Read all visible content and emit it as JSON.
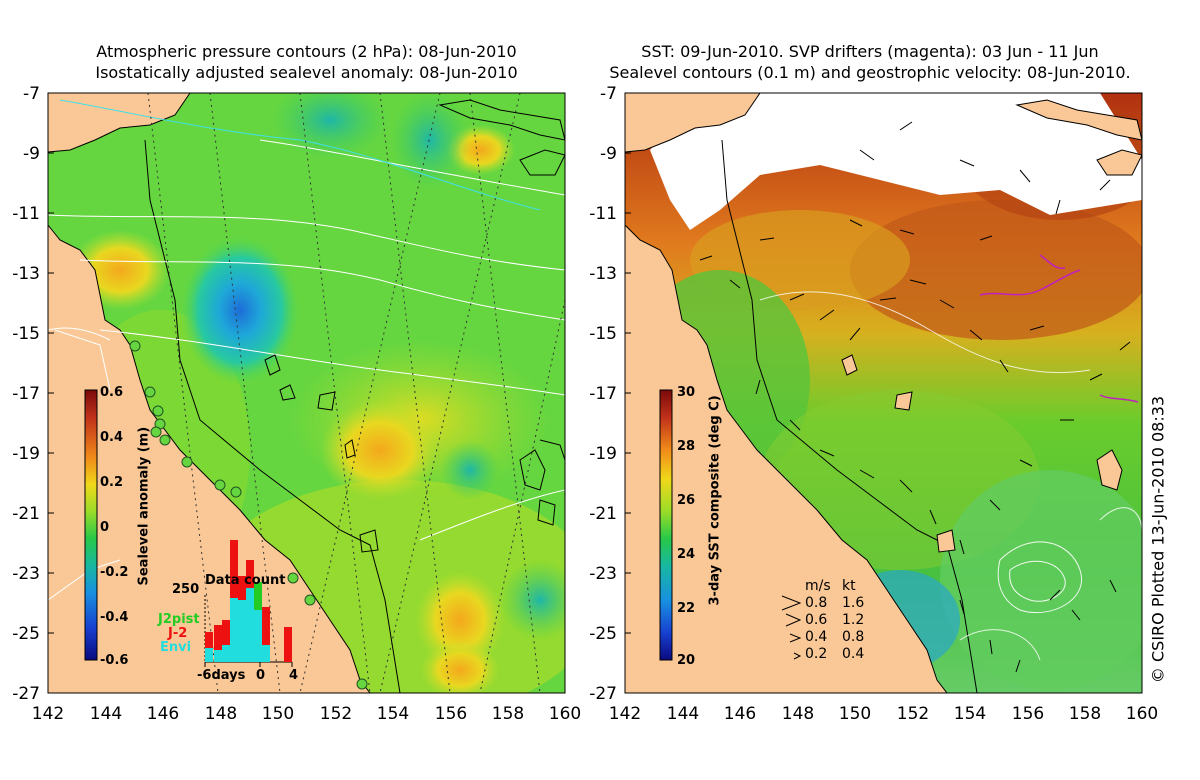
{
  "left_panel": {
    "title_line1": "Atmospheric pressure contours (2 hPa): 08-Jun-2010",
    "title_line2": "Isostatically adjusted sealevel anomaly: 08-Jun-2010",
    "y_ticks": [
      "-7",
      "-9",
      "-11",
      "-13",
      "-15",
      "-17",
      "-19",
      "-21",
      "-23",
      "-25",
      "-27"
    ],
    "x_ticks": [
      "142",
      "144",
      "146",
      "148",
      "150",
      "152",
      "154",
      "156",
      "158",
      "160"
    ],
    "colorbar": {
      "label": "Sealevel anomaly (m)",
      "ticks": [
        "0.6",
        "0.4",
        "0.2",
        "0",
        "-0.2",
        "-0.4",
        "-0.6"
      ],
      "range": [
        -0.6,
        0.6
      ]
    },
    "histogram": {
      "title": "Data count",
      "y_tick": "250",
      "x_ticks": [
        "-6days",
        "0",
        "4"
      ],
      "legend": [
        "J2pist",
        "J-2",
        "Envi"
      ],
      "colors": {
        "J2pist": "#22cc22",
        "J-2": "#ee1111",
        "Envi": "#22dddd"
      }
    }
  },
  "right_panel": {
    "title_line1": "SST: 09-Jun-2010. SVP drifters (magenta): 03 Jun - 11 Jun",
    "title_line2": "Sealevel contours (0.1 m) and geostrophic velocity: 08-Jun-2010.",
    "y_ticks": [
      "-7",
      "-9",
      "-11",
      "-13",
      "-15",
      "-17",
      "-19",
      "-21",
      "-23",
      "-25",
      "-27"
    ],
    "x_ticks": [
      "142",
      "144",
      "146",
      "148",
      "150",
      "152",
      "154",
      "156",
      "158",
      "160"
    ],
    "colorbar": {
      "label": "3-day SST composite (deg C)",
      "ticks": [
        "30",
        "28",
        "26",
        "24",
        "22",
        "20"
      ],
      "range": [
        20,
        30
      ]
    },
    "velocity_legend": {
      "header_ms": "m/s",
      "header_kt": "kt",
      "rows": [
        {
          "ms": "0.8",
          "kt": "1.6"
        },
        {
          "ms": "0.6",
          "kt": "1.2"
        },
        {
          "ms": "0.4",
          "kt": "0.8"
        },
        {
          "ms": "0.2",
          "kt": "0.4"
        }
      ]
    }
  },
  "credit": "© CSIRO Plotted 13-Jun-2010 08:33"
}
